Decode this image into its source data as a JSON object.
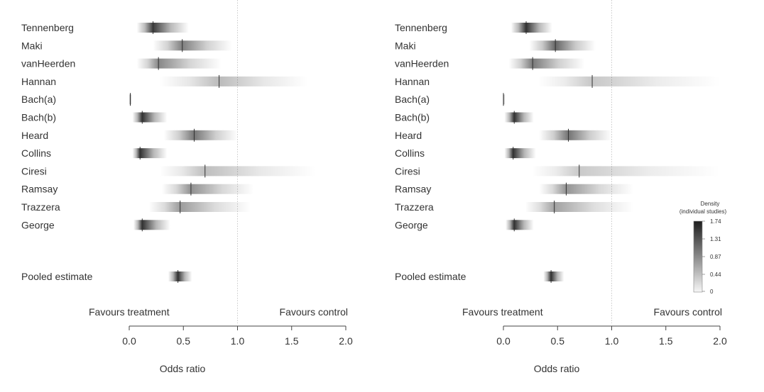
{
  "chart_data": [
    {
      "type": "density-strip",
      "panel": "left",
      "studies": [
        {
          "name": "Tennenberg",
          "estimate": 0.22,
          "lo": 0.07,
          "hi": 0.55
        },
        {
          "name": "Maki",
          "estimate": 0.49,
          "lo": 0.22,
          "hi": 0.95
        },
        {
          "name": "vanHeerden",
          "estimate": 0.27,
          "lo": 0.07,
          "hi": 0.85
        },
        {
          "name": "Hannan",
          "estimate": 0.83,
          "lo": 0.28,
          "hi": 1.65
        },
        {
          "name": "Bach(a)",
          "estimate": 0.01,
          "lo": 0.0,
          "hi": 0.02
        },
        {
          "name": "Bach(b)",
          "estimate": 0.12,
          "lo": 0.03,
          "hi": 0.35
        },
        {
          "name": "Heard",
          "estimate": 0.6,
          "lo": 0.32,
          "hi": 1.0
        },
        {
          "name": "Collins",
          "estimate": 0.1,
          "lo": 0.03,
          "hi": 0.35
        },
        {
          "name": "Ciresi",
          "estimate": 0.7,
          "lo": 0.28,
          "hi": 1.72
        },
        {
          "name": "Ramsay",
          "estimate": 0.57,
          "lo": 0.3,
          "hi": 1.15
        },
        {
          "name": "Trazzera",
          "estimate": 0.47,
          "lo": 0.18,
          "hi": 1.12
        },
        {
          "name": "George",
          "estimate": 0.12,
          "lo": 0.04,
          "hi": 0.38
        }
      ],
      "pooled": {
        "name": "Pooled estimate",
        "estimate": 0.45,
        "lo": 0.36,
        "hi": 0.58
      },
      "favours_treatment": "Favours treatment",
      "favours_control": "Favours control",
      "xlabel": "Odds ratio",
      "xticks": [
        "0.0",
        "0.5",
        "1.0",
        "1.5",
        "2.0"
      ],
      "xlim": [
        0,
        2
      ],
      "reference_line": 1.0
    },
    {
      "type": "density-strip",
      "panel": "right",
      "studies": [
        {
          "name": "Tennenberg",
          "estimate": 0.21,
          "lo": 0.07,
          "hi": 0.45
        },
        {
          "name": "Maki",
          "estimate": 0.48,
          "lo": 0.24,
          "hi": 0.85
        },
        {
          "name": "vanHeerden",
          "estimate": 0.27,
          "lo": 0.05,
          "hi": 0.75
        },
        {
          "name": "Hannan",
          "estimate": 0.82,
          "lo": 0.32,
          "hi": 2.0
        },
        {
          "name": "Bach(a)",
          "estimate": 0.0,
          "lo": 0.0,
          "hi": 0.01
        },
        {
          "name": "Bach(b)",
          "estimate": 0.1,
          "lo": 0.01,
          "hi": 0.28
        },
        {
          "name": "Heard",
          "estimate": 0.6,
          "lo": 0.33,
          "hi": 1.0
        },
        {
          "name": "Collins",
          "estimate": 0.09,
          "lo": 0.01,
          "hi": 0.3
        },
        {
          "name": "Ciresi",
          "estimate": 0.7,
          "lo": 0.26,
          "hi": 2.0
        },
        {
          "name": "Ramsay",
          "estimate": 0.58,
          "lo": 0.33,
          "hi": 1.2
        },
        {
          "name": "Trazzera",
          "estimate": 0.47,
          "lo": 0.2,
          "hi": 1.2
        },
        {
          "name": "George",
          "estimate": 0.1,
          "lo": 0.02,
          "hi": 0.28
        }
      ],
      "pooled": {
        "name": "Pooled estimate",
        "estimate": 0.44,
        "lo": 0.37,
        "hi": 0.56
      },
      "favours_treatment": "Favours treatment",
      "favours_control": "Favours control",
      "xlabel": "Odds ratio",
      "xticks": [
        "0.0",
        "0.5",
        "1.0",
        "1.5",
        "2.0"
      ],
      "xlim": [
        0,
        2
      ],
      "reference_line": 1.0,
      "legend": {
        "title_line1": "Density",
        "title_line2": "(individual studies)",
        "ticks": [
          "1.74",
          "1.31",
          "0.87",
          "0.44",
          "0"
        ],
        "placement": "right"
      }
    }
  ],
  "colors": {
    "strip_dark": "#202020",
    "text": "#333333",
    "reference_line": "#c8c8c8",
    "axis": "#444444"
  }
}
